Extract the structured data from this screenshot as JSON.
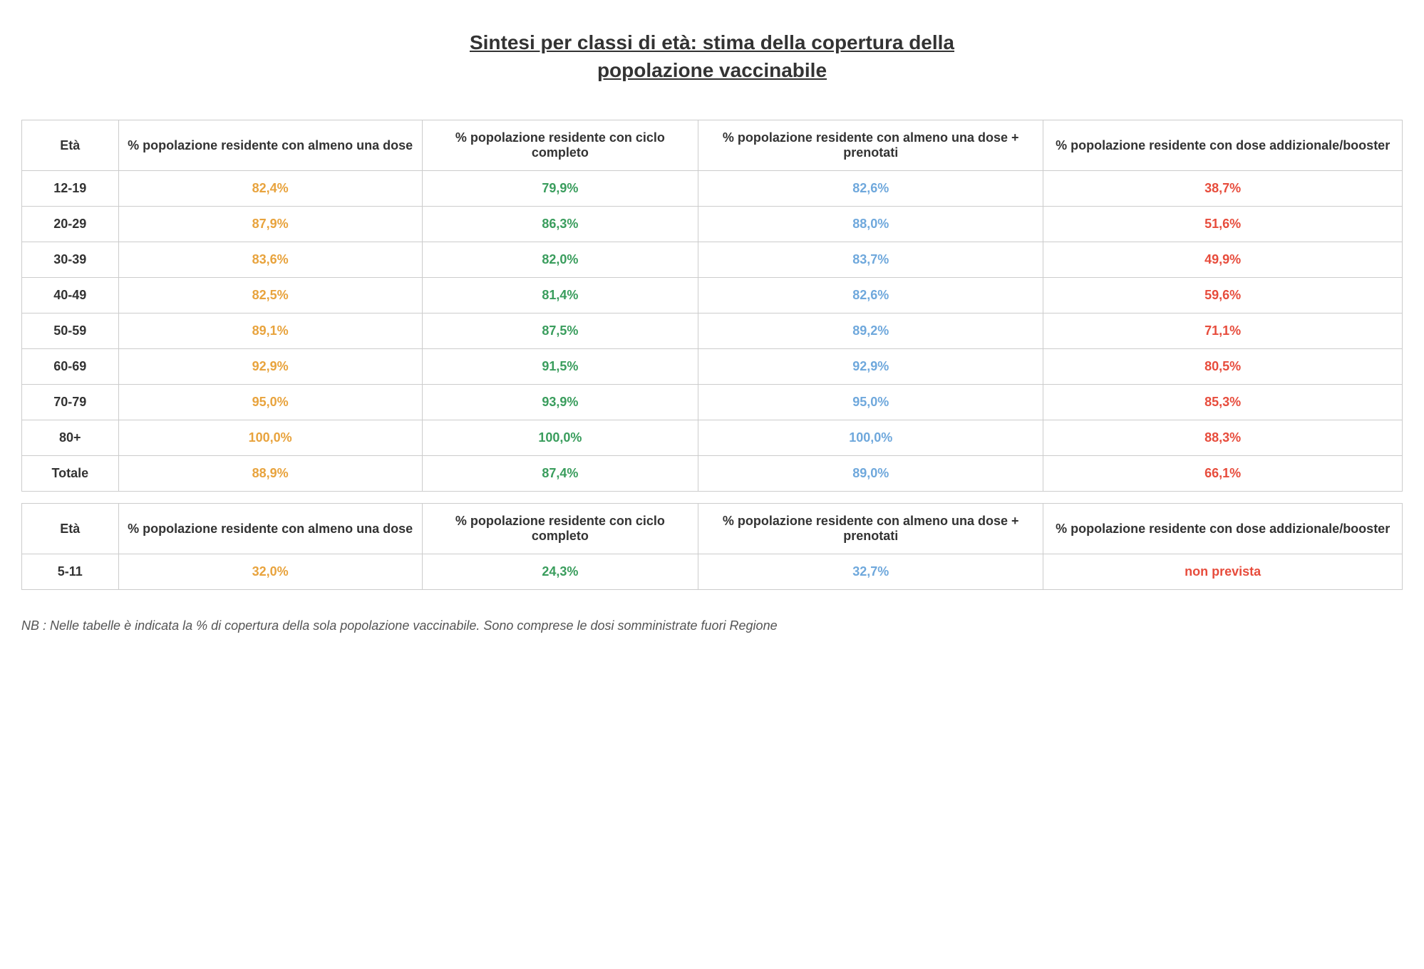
{
  "title_line1": "Sintesi per classi di età: stima della copertura della",
  "title_line2": "popolazione vaccinabile",
  "columns": {
    "age": "Età",
    "col1": "% popolazione residente con almeno una dose",
    "col2": "% popolazione residente con ciclo completo",
    "col3": "% popolazione residente con almeno una dose + prenotati",
    "col4": "% popolazione residente con dose addizionale/booster"
  },
  "colors": {
    "col1": "#e8a33d",
    "col2": "#3a9d5d",
    "col3": "#6fa8dc",
    "col4": "#e74c3c",
    "header_text": "#333333",
    "border": "#cccccc",
    "background": "#ffffff"
  },
  "typography": {
    "title_fontsize": 28,
    "cell_fontsize": 18,
    "font_family": "Verdana"
  },
  "main_rows": [
    {
      "age": "12-19",
      "c1": "82,4%",
      "c2": "79,9%",
      "c3": "82,6%",
      "c4": "38,7%"
    },
    {
      "age": "20-29",
      "c1": "87,9%",
      "c2": "86,3%",
      "c3": "88,0%",
      "c4": "51,6%"
    },
    {
      "age": "30-39",
      "c1": "83,6%",
      "c2": "82,0%",
      "c3": "83,7%",
      "c4": "49,9%"
    },
    {
      "age": "40-49",
      "c1": "82,5%",
      "c2": "81,4%",
      "c3": "82,6%",
      "c4": "59,6%"
    },
    {
      "age": "50-59",
      "c1": "89,1%",
      "c2": "87,5%",
      "c3": "89,2%",
      "c4": "71,1%"
    },
    {
      "age": "60-69",
      "c1": "92,9%",
      "c2": "91,5%",
      "c3": "92,9%",
      "c4": "80,5%"
    },
    {
      "age": "70-79",
      "c1": "95,0%",
      "c2": "93,9%",
      "c3": "95,0%",
      "c4": "85,3%"
    },
    {
      "age": "80+",
      "c1": "100,0%",
      "c2": "100,0%",
      "c3": "100,0%",
      "c4": "88,3%"
    },
    {
      "age": "Totale",
      "c1": "88,9%",
      "c2": "87,4%",
      "c3": "89,0%",
      "c4": "66,1%"
    }
  ],
  "secondary_rows": [
    {
      "age": "5-11",
      "c1": "32,0%",
      "c2": "24,3%",
      "c3": "32,7%",
      "c4": "non prevista"
    }
  ],
  "footnote": "NB : Nelle tabelle è indicata la % di copertura della sola popolazione vaccinabile. Sono comprese le dosi somministrate fuori Regione"
}
